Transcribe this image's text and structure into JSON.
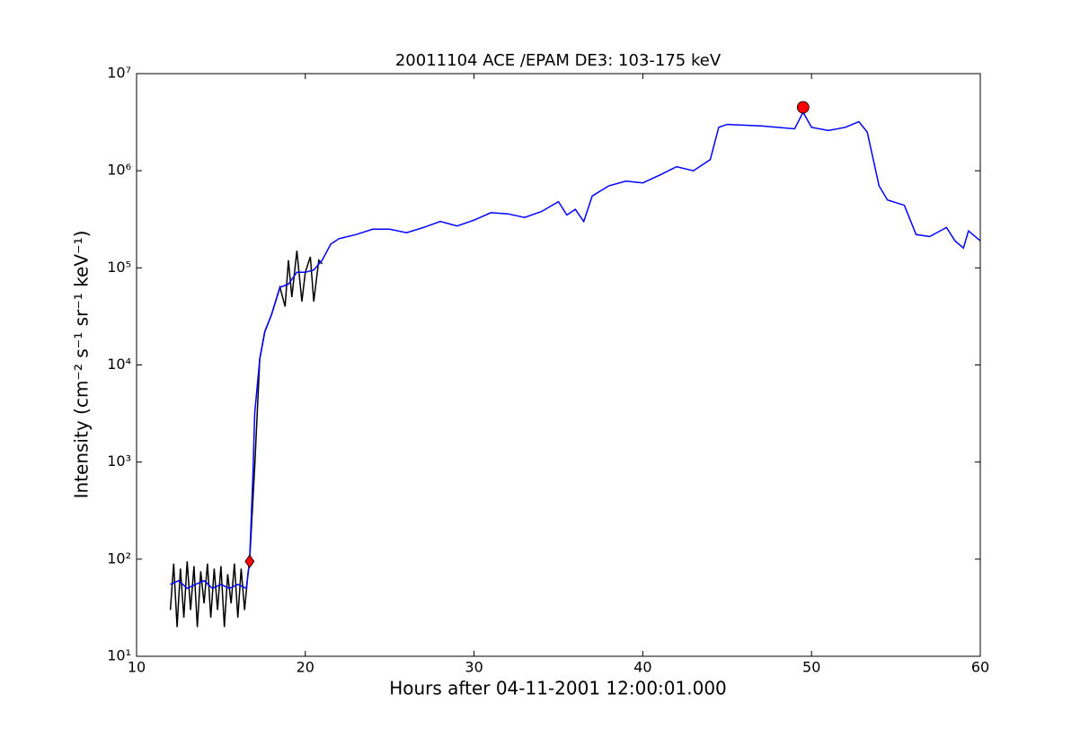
{
  "chart_data": {
    "type": "line",
    "title": "20011104 ACE /EPAM DE3: 103-175 keV",
    "x_label": "Hours after 04-11-2001 12:00:01.000",
    "y_label": "Intensity (cm⁻² s⁻¹ sr⁻¹ keV⁻¹)",
    "xlim": [
      10,
      60
    ],
    "xticks": [
      10,
      20,
      30,
      40,
      50,
      60
    ],
    "ylim": [
      10,
      10000000
    ],
    "yscale": "log",
    "yticks": [
      {
        "value": 10,
        "label": "10¹"
      },
      {
        "value": 100,
        "label": "10²"
      },
      {
        "value": 1000,
        "label": "10³"
      },
      {
        "value": 10000,
        "label": "10⁴"
      },
      {
        "value": 100000,
        "label": "10⁵"
      },
      {
        "value": 1000000,
        "label": "10⁶"
      },
      {
        "value": 10000000,
        "label": "10⁷"
      }
    ],
    "series": [
      {
        "color": "#000000",
        "x": [
          12,
          12.2,
          12.4,
          12.6,
          12.8,
          13,
          13.2,
          13.4,
          13.6,
          13.8,
          14,
          14.2,
          14.4,
          14.6,
          14.8,
          15,
          15.2,
          15.4,
          15.6,
          15.8,
          16,
          16.2,
          16.4,
          16.6,
          16.7,
          17,
          17.3,
          17.6,
          18,
          18.5,
          18.8,
          19,
          19.2,
          19.5,
          19.8,
          20,
          20.3,
          20.5,
          20.8,
          21
        ],
        "values": [
          30,
          90,
          20,
          80,
          25,
          95,
          30,
          85,
          20,
          75,
          35,
          90,
          25,
          80,
          30,
          85,
          20,
          70,
          35,
          90,
          25,
          80,
          30,
          70,
          95,
          900,
          11500,
          22000,
          33000,
          63000,
          40000,
          120000,
          50000,
          150000,
          45000,
          90000,
          130000,
          45000,
          120000,
          110000
        ]
      },
      {
        "color": "#0000ff",
        "x": [
          12,
          12.5,
          13,
          13.5,
          14,
          14.5,
          15,
          15.5,
          16,
          16.5,
          16.7,
          16.9,
          17,
          17.3,
          17.6,
          18,
          18.5,
          19,
          19.5,
          20,
          20.5,
          21,
          21.5,
          22,
          23,
          24,
          25,
          26,
          27,
          28,
          29,
          30,
          31,
          32,
          33,
          34,
          35,
          35.5,
          36,
          36.5,
          37,
          38,
          39,
          40,
          41,
          42,
          43,
          44,
          44.5,
          45,
          47,
          49,
          49.5,
          50,
          51,
          52,
          52.8,
          53.3,
          54,
          54.5,
          55.5,
          56.2,
          57,
          58,
          58.5,
          59,
          59.3,
          60
        ],
        "values": [
          55,
          60,
          50,
          55,
          60,
          50,
          55,
          50,
          55,
          50,
          95,
          800,
          3200,
          11500,
          22000,
          33000,
          63000,
          68000,
          90000,
          90000,
          95000,
          120000,
          175000,
          200000,
          220000,
          250000,
          250000,
          230000,
          260000,
          300000,
          270000,
          310000,
          370000,
          360000,
          330000,
          380000,
          480000,
          350000,
          400000,
          300000,
          550000,
          700000,
          780000,
          750000,
          900000,
          1100000,
          1000000,
          1300000,
          2800000,
          3000000,
          2900000,
          2700000,
          4000000,
          2800000,
          2600000,
          2800000,
          3200000,
          2500000,
          700000,
          500000,
          440000,
          220000,
          210000,
          260000,
          190000,
          160000,
          240000,
          190000
        ]
      }
    ],
    "points": [
      {
        "x": 16.7,
        "y": 95,
        "marker": "diamond",
        "color": "#ff0000"
      },
      {
        "x": 49.5,
        "y": 4500000,
        "marker": "circle",
        "color": "#ff0000"
      }
    ]
  }
}
